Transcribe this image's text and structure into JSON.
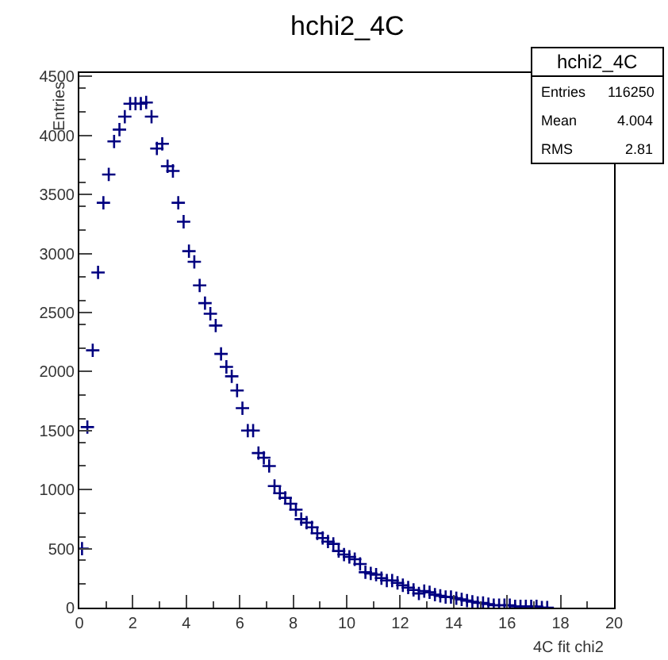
{
  "chart_data": {
    "type": "scatter",
    "title": "hchi2_4C",
    "xlabel": "4C fit chi2",
    "ylabel": "Entries",
    "annotations": [
      "hchi2_4C",
      "Entries",
      "116250",
      "Mean",
      "4.004",
      "RMS",
      "2.81"
    ],
    "x": [
      0.1,
      0.3,
      0.5,
      0.7,
      0.9,
      1.1,
      1.3,
      1.5,
      1.7,
      1.9,
      2.1,
      2.3,
      2.5,
      2.7,
      2.9,
      3.1,
      3.3,
      3.5,
      3.7,
      3.9,
      4.1,
      4.3,
      4.5,
      4.7,
      4.9,
      5.1,
      5.3,
      5.5,
      5.7,
      5.9,
      6.1,
      6.3,
      6.5,
      6.7,
      6.9,
      7.1,
      7.3,
      7.5,
      7.7,
      7.9,
      8.1,
      8.3,
      8.5,
      8.7,
      8.9,
      9.1,
      9.3,
      9.5,
      9.7,
      9.9,
      10.1,
      10.3,
      10.5,
      10.7,
      10.9,
      11.1,
      11.3,
      11.5,
      11.7,
      11.9,
      12.1,
      12.3,
      12.5,
      12.7,
      12.9,
      13.1,
      13.3,
      13.5,
      13.7,
      13.9,
      14.1,
      14.3,
      14.5,
      14.7,
      14.9,
      15.1,
      15.3,
      15.5,
      15.7,
      15.9,
      16.1,
      16.3,
      16.5,
      16.7,
      16.9,
      17.1,
      17.3,
      17.5
    ],
    "series": [
      {
        "color": "#000080",
        "values": [
          500,
          1530,
          2180,
          2840,
          3430,
          3670,
          3950,
          4050,
          4160,
          4270,
          4270,
          4270,
          4280,
          4160,
          3890,
          3930,
          3740,
          3700,
          3430,
          3270,
          3020,
          2930,
          2730,
          2580,
          2490,
          2390,
          2150,
          2040,
          1960,
          1840,
          1690,
          1500,
          1500,
          1310,
          1270,
          1200,
          1030,
          970,
          930,
          880,
          830,
          750,
          720,
          680,
          630,
          590,
          560,
          540,
          480,
          450,
          430,
          410,
          370,
          300,
          290,
          280,
          250,
          230,
          230,
          210,
          190,
          170,
          150,
          120,
          140,
          130,
          110,
          100,
          90,
          90,
          80,
          70,
          60,
          50,
          40,
          40,
          30,
          20,
          20,
          20,
          20,
          10,
          10,
          10,
          10,
          10,
          0,
          0
        ]
      }
    ],
    "marker": "cross",
    "xlim": [
      0,
      20
    ],
    "ylim": [
      0,
      4530
    ],
    "xticks": [
      0,
      2,
      4,
      6,
      8,
      10,
      12,
      14,
      16,
      18,
      20
    ],
    "yticks": [
      0,
      500,
      1000,
      1500,
      2000,
      2500,
      3000,
      3500,
      4000,
      4500
    ]
  }
}
